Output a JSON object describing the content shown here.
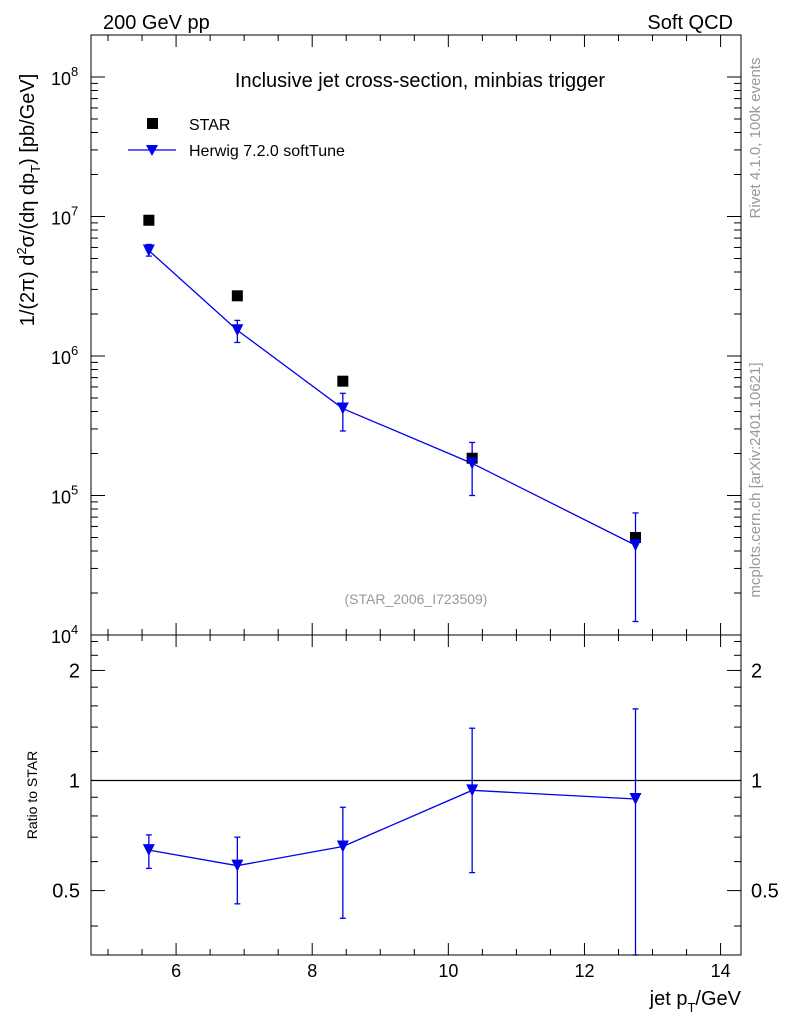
{
  "header": {
    "left": "200 GeV pp",
    "right": "Soft QCD",
    "side_top": "Rivet 4.1.0,  100k events",
    "side_bottom": "mcplots.cern.ch [arXiv:2401.10621]"
  },
  "colors": {
    "star": "#000000",
    "herwig": "#0000ee",
    "frame": "#000000",
    "watermark": "#999999"
  },
  "chart_data": [
    {
      "panel": "main",
      "type": "scatter",
      "title": "Inclusive jet cross-section, minbias trigger",
      "watermark": "(STAR_2006_I723509)",
      "xlabel": {
        "main": "jet p",
        "sub": "T",
        "tail": "/GeV"
      },
      "ylabel": {
        "a": "1/(2π)   d",
        "sup": "2",
        "b": "σ/(dη dp",
        "sub": "T",
        "c": ") [pb/GeV]"
      },
      "xlim": [
        4.75,
        14.3
      ],
      "ylim": [
        10000,
        200000000
      ],
      "yscale": "log",
      "xticks": [
        6,
        8,
        10,
        12,
        14
      ],
      "yticks": [
        {
          "exp": 4,
          "base": "10",
          "sup": "4"
        },
        {
          "exp": 5,
          "base": "10",
          "sup": "5"
        },
        {
          "exp": 6,
          "base": "10",
          "sup": "6"
        },
        {
          "exp": 7,
          "base": "10",
          "sup": "7"
        },
        {
          "exp": 8,
          "base": "10",
          "sup": "8"
        }
      ],
      "legend": {
        "position": "top-left",
        "entries": [
          "STAR",
          "Herwig 7.2.0 softTune"
        ]
      },
      "series": [
        {
          "name": "STAR",
          "marker": "square",
          "points": [
            {
              "x": 5.6,
              "y": 9400000
            },
            {
              "x": 6.9,
              "y": 2700000
            },
            {
              "x": 8.45,
              "y": 660000
            },
            {
              "x": 10.35,
              "y": 185000
            },
            {
              "x": 12.75,
              "y": 50000
            }
          ]
        },
        {
          "name": "Herwig 7.2.0 softTune",
          "marker": "triangle-down",
          "line": true,
          "points": [
            {
              "x": 5.6,
              "y": 5700000,
              "ylo": 5200000,
              "yhi": 6300000
            },
            {
              "x": 6.9,
              "y": 1530000,
              "ylo": 1250000,
              "yhi": 1800000
            },
            {
              "x": 8.45,
              "y": 420000,
              "ylo": 290000,
              "yhi": 540000
            },
            {
              "x": 10.35,
              "y": 170000,
              "ylo": 100000,
              "yhi": 240000
            },
            {
              "x": 12.75,
              "y": 44000,
              "ylo": 12500,
              "yhi": 75000
            }
          ]
        }
      ]
    },
    {
      "panel": "ratio",
      "type": "line",
      "ylabel": "Ratio to STAR",
      "xlim": [
        4.75,
        14.3
      ],
      "ylim": [
        0.3333,
        2.5
      ],
      "yscale": "log",
      "yticks": [
        "0.5",
        "1",
        "2"
      ],
      "reference_line": 1,
      "series": [
        {
          "name": "Herwig 7.2.0 softTune",
          "marker": "triangle-down",
          "points": [
            {
              "x": 5.6,
              "y": 0.645,
              "ylo": 0.575,
              "yhi": 0.71
            },
            {
              "x": 6.9,
              "y": 0.585,
              "ylo": 0.46,
              "yhi": 0.7
            },
            {
              "x": 8.45,
              "y": 0.66,
              "ylo": 0.42,
              "yhi": 0.845
            },
            {
              "x": 10.35,
              "y": 0.94,
              "ylo": 0.56,
              "yhi": 1.39
            },
            {
              "x": 12.75,
              "y": 0.89,
              "ylo": 0.3333,
              "yhi": 1.57
            }
          ]
        }
      ]
    }
  ]
}
